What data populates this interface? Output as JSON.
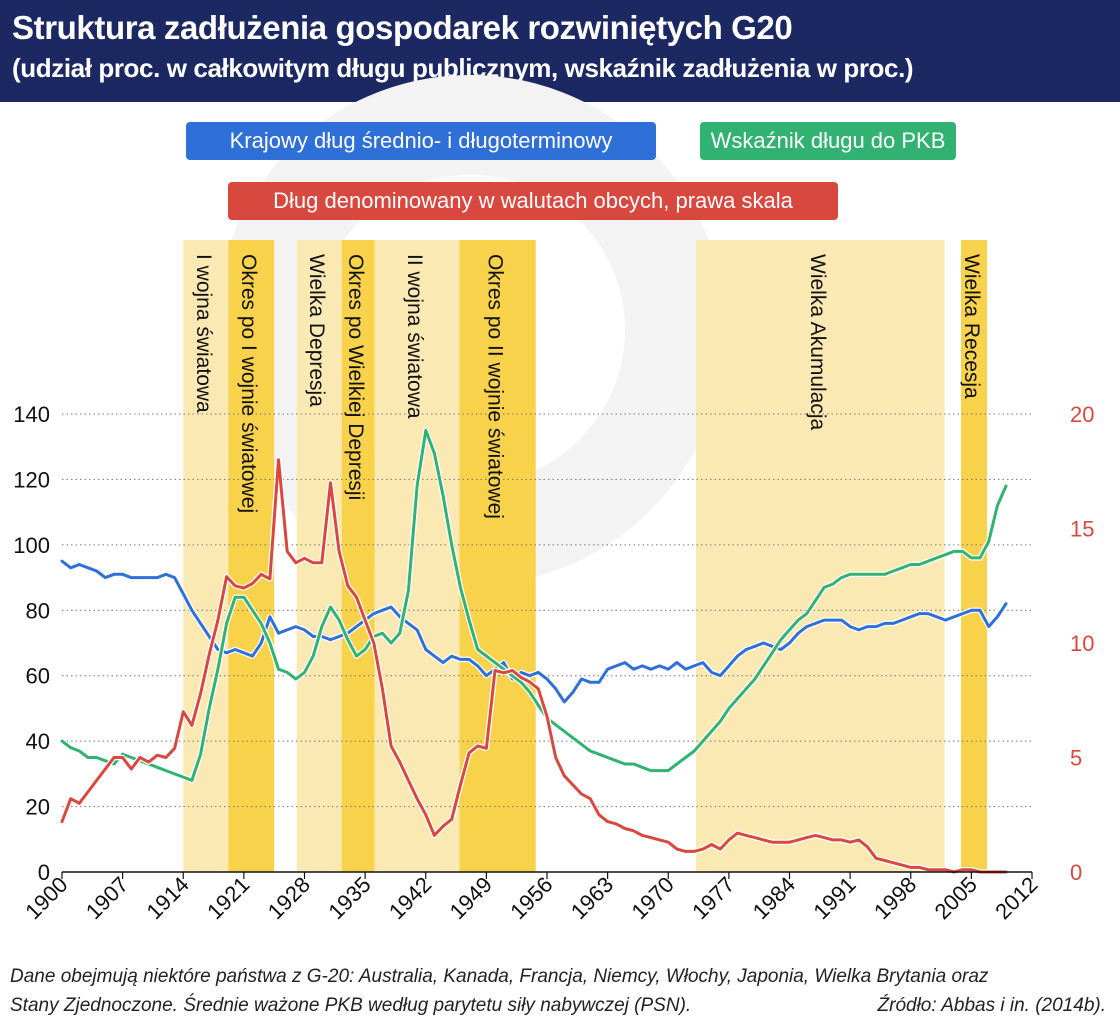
{
  "header": {
    "title": "Struktura zadłużenia gospodarek rozwiniętych G20",
    "subtitle": "(udział proc. w całkowitym długu publicznym, wskaźnik zadłużenia w proc.)"
  },
  "legend": {
    "blue": "Krajowy dług średnio- i długoterminowy",
    "green": "Wskaźnik długu do PKB",
    "red": "Dług denominowany w walutach obcych, prawa skala"
  },
  "footnote": {
    "line1": "Dane obejmują niektóre państwa z G-20: Australia, Kanada, Francja, Niemcy, Włochy, Japonia, Wielka Brytania oraz",
    "line2": "Stany Zjednoczone.  Średnie ważone PKB według parytetu siły nabywczej (PSN).",
    "source": "Źródło: Abbas i in. (2014b)."
  },
  "colors": {
    "header_bg": "#1c2862",
    "blue": "#2f6fd8",
    "green": "#32b272",
    "red": "#d9483f",
    "right_axis": "#d9483f",
    "band_light": "#fbe9b4",
    "band_dark": "#f8d24a"
  },
  "chart_data": {
    "type": "line",
    "x_axis": {
      "ticks": [
        1900,
        1907,
        1914,
        1921,
        1928,
        1935,
        1942,
        1949,
        1956,
        1963,
        1970,
        1977,
        1984,
        1991,
        1998,
        2005,
        2012
      ],
      "range": [
        1900,
        2012
      ]
    },
    "y_left": {
      "range": [
        0,
        140
      ],
      "ticks": [
        0,
        20,
        40,
        60,
        80,
        100,
        120,
        140
      ]
    },
    "y_right": {
      "range": [
        0,
        20
      ],
      "ticks": [
        0,
        5,
        10,
        15,
        20
      ]
    },
    "grid": "horizontal dotted",
    "periods": [
      {
        "label": "I wojna światowa",
        "start": 1914,
        "end": 1919.2,
        "shade": "light"
      },
      {
        "label": "Okres po I wojnie światowej",
        "start": 1919.2,
        "end": 1924.5,
        "shade": "dark"
      },
      {
        "label": "Wielka Depresja",
        "start": 1927.1,
        "end": 1932.3,
        "shade": "light"
      },
      {
        "label": "Okres po Wielkiej Depresji",
        "start": 1932.3,
        "end": 1936.1,
        "shade": "dark"
      },
      {
        "label": "II wojna światowa",
        "start": 1936.1,
        "end": 1945.9,
        "shade": "light"
      },
      {
        "label": "Okres po II wojnie światowej",
        "start": 1945.9,
        "end": 1954.7,
        "shade": "dark"
      },
      {
        "label": "Wielka Akumulacja",
        "start": 1973.2,
        "end": 2001.9,
        "shade": "light"
      },
      {
        "label": "Wielka Recesja",
        "start": 2003.8,
        "end": 2006.8,
        "shade": "dark"
      }
    ],
    "series": [
      {
        "name": "Krajowy dług średnio- i długoterminowy",
        "axis": "left",
        "color": "#2f6fd8",
        "x": [
          1900,
          1901,
          1902,
          1903,
          1904,
          1905,
          1906,
          1907,
          1908,
          1909,
          1910,
          1911,
          1912,
          1913,
          1914,
          1915,
          1916,
          1917,
          1918,
          1919,
          1920,
          1921,
          1922,
          1923,
          1924,
          1925,
          1926,
          1927,
          1928,
          1929,
          1930,
          1931,
          1932,
          1933,
          1934,
          1935,
          1936,
          1937,
          1938,
          1939,
          1940,
          1941,
          1942,
          1943,
          1944,
          1945,
          1946,
          1947,
          1948,
          1949,
          1950,
          1951,
          1952,
          1953,
          1954,
          1955,
          1956,
          1957,
          1958,
          1959,
          1960,
          1961,
          1962,
          1963,
          1964,
          1965,
          1966,
          1967,
          1968,
          1969,
          1970,
          1971,
          1972,
          1973,
          1974,
          1975,
          1976,
          1977,
          1978,
          1979,
          1980,
          1981,
          1982,
          1983,
          1984,
          1985,
          1986,
          1987,
          1988,
          1989,
          1990,
          1991,
          1992,
          1993,
          1994,
          1995,
          1996,
          1997,
          1998,
          1999,
          2000,
          2001,
          2002,
          2003,
          2004,
          2005,
          2006,
          2007,
          2008,
          2009
        ],
        "values": [
          95,
          93,
          94,
          93,
          92,
          90,
          91,
          91,
          90,
          90,
          90,
          90,
          91,
          90,
          85,
          80,
          76,
          72,
          68,
          67,
          68,
          67,
          66,
          70,
          78,
          73,
          74,
          75,
          74,
          72,
          72,
          71,
          72,
          73,
          75,
          77,
          79,
          80,
          81,
          78,
          76,
          74,
          68,
          66,
          64,
          66,
          65,
          65,
          63,
          60,
          62,
          64,
          59,
          61,
          60,
          61,
          59,
          56,
          52,
          55,
          59,
          58,
          58,
          62,
          63,
          64,
          62,
          63,
          62,
          63,
          62,
          64,
          62,
          63,
          64,
          61,
          60,
          63,
          66,
          68,
          69,
          70,
          69,
          68,
          70,
          73,
          75,
          76,
          77,
          77,
          77,
          75,
          74,
          75,
          75,
          76,
          76,
          77,
          78,
          79,
          79,
          78,
          77,
          78,
          79,
          80,
          80,
          75,
          78,
          82
        ]
      },
      {
        "name": "Wskaźnik długu do PKB",
        "axis": "left",
        "color": "#32b272",
        "x": [
          1900,
          1901,
          1902,
          1903,
          1904,
          1905,
          1906,
          1907,
          1908,
          1909,
          1910,
          1911,
          1912,
          1913,
          1914,
          1915,
          1916,
          1917,
          1918,
          1919,
          1920,
          1921,
          1922,
          1923,
          1924,
          1925,
          1926,
          1927,
          1928,
          1929,
          1930,
          1931,
          1932,
          1933,
          1934,
          1935,
          1936,
          1937,
          1938,
          1939,
          1940,
          1941,
          1942,
          1943,
          1944,
          1945,
          1946,
          1947,
          1948,
          1949,
          1950,
          1951,
          1952,
          1953,
          1954,
          1955,
          1956,
          1957,
          1958,
          1959,
          1960,
          1961,
          1962,
          1963,
          1964,
          1965,
          1966,
          1967,
          1968,
          1969,
          1970,
          1971,
          1972,
          1973,
          1974,
          1975,
          1976,
          1977,
          1978,
          1979,
          1980,
          1981,
          1982,
          1983,
          1984,
          1985,
          1986,
          1987,
          1988,
          1989,
          1990,
          1991,
          1992,
          1993,
          1994,
          1995,
          1996,
          1997,
          1998,
          1999,
          2000,
          2001,
          2002,
          2003,
          2004,
          2005,
          2006,
          2007,
          2008,
          2009
        ],
        "values": [
          40,
          38,
          37,
          35,
          35,
          34,
          33,
          36,
          35,
          34,
          33,
          32,
          31,
          30,
          29,
          28,
          36,
          50,
          62,
          76,
          84,
          84,
          80,
          76,
          70,
          62,
          61,
          59,
          61,
          66,
          75,
          81,
          77,
          71,
          66,
          68,
          72,
          73,
          70,
          73,
          86,
          118,
          135,
          128,
          115,
          100,
          87,
          77,
          68,
          66,
          64,
          62,
          60,
          58,
          55,
          51,
          47,
          45,
          43,
          41,
          39,
          37,
          36,
          35,
          34,
          33,
          33,
          32,
          31,
          31,
          31,
          33,
          35,
          37,
          40,
          43,
          46,
          50,
          53,
          56,
          59,
          63,
          67,
          71,
          74,
          77,
          79,
          83,
          87,
          88,
          90,
          91,
          91,
          91,
          91,
          91,
          92,
          93,
          94,
          94,
          95,
          96,
          97,
          98,
          98,
          96,
          96,
          101,
          112,
          118
        ]
      },
      {
        "name": "Dług denominowany w walutach obcych, prawa skala",
        "axis": "right",
        "color": "#d9483f",
        "x": [
          1900,
          1901,
          1902,
          1903,
          1904,
          1905,
          1906,
          1907,
          1908,
          1909,
          1910,
          1911,
          1912,
          1913,
          1914,
          1915,
          1916,
          1917,
          1918,
          1919,
          1920,
          1921,
          1922,
          1923,
          1924,
          1925,
          1926,
          1927,
          1928,
          1929,
          1930,
          1931,
          1932,
          1933,
          1934,
          1935,
          1936,
          1937,
          1938,
          1939,
          1940,
          1941,
          1942,
          1943,
          1944,
          1945,
          1946,
          1947,
          1948,
          1949,
          1950,
          1951,
          1952,
          1953,
          1954,
          1955,
          1956,
          1957,
          1958,
          1959,
          1960,
          1961,
          1962,
          1963,
          1964,
          1965,
          1966,
          1967,
          1968,
          1969,
          1970,
          1971,
          1972,
          1973,
          1974,
          1975,
          1976,
          1977,
          1978,
          1979,
          1980,
          1981,
          1982,
          1983,
          1984,
          1985,
          1986,
          1987,
          1988,
          1989,
          1990,
          1991,
          1992,
          1993,
          1994,
          1995,
          1996,
          1997,
          1998,
          1999,
          2000,
          2001,
          2002,
          2003,
          2004,
          2005,
          2006,
          2007,
          2008,
          2009
        ],
        "values": [
          2.2,
          3.2,
          3.0,
          3.5,
          4.0,
          4.5,
          5.0,
          5.0,
          4.5,
          5.0,
          4.8,
          5.1,
          5.0,
          5.4,
          7.0,
          6.4,
          7.8,
          9.5,
          11.0,
          12.9,
          12.5,
          12.4,
          12.6,
          13.0,
          12.8,
          18.0,
          14.0,
          13.5,
          13.7,
          13.5,
          13.5,
          17.0,
          14.0,
          12.5,
          12.0,
          11.0,
          10.0,
          8.0,
          5.5,
          4.8,
          4.0,
          3.2,
          2.5,
          1.6,
          2.0,
          2.3,
          3.8,
          5.2,
          5.5,
          5.4,
          8.8,
          8.7,
          8.8,
          8.5,
          8.3,
          8.0,
          6.8,
          5.0,
          4.2,
          3.8,
          3.4,
          3.2,
          2.5,
          2.2,
          2.1,
          1.9,
          1.8,
          1.6,
          1.5,
          1.4,
          1.3,
          1.0,
          0.9,
          0.9,
          1.0,
          1.2,
          1.0,
          1.4,
          1.7,
          1.6,
          1.5,
          1.4,
          1.3,
          1.3,
          1.3,
          1.4,
          1.5,
          1.6,
          1.5,
          1.4,
          1.4,
          1.3,
          1.4,
          1.1,
          0.6,
          0.5,
          0.4,
          0.3,
          0.2,
          0.2,
          0.1,
          0.1,
          0.1,
          0.0,
          0.1,
          0.1,
          0.0,
          0.0,
          0.0,
          0.0
        ]
      }
    ]
  }
}
